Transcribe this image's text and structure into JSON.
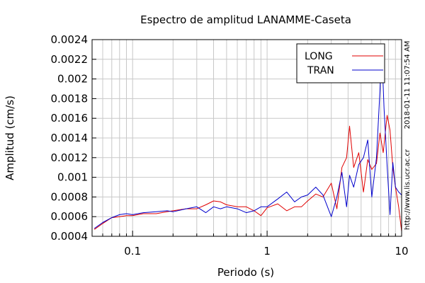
{
  "chart_data": {
    "type": "line",
    "title": "Espectro de amplitud LANAMME-Caseta",
    "xlabel": "Periodo (s)",
    "ylabel": "Amplitud (cm/s)",
    "xscale": "log",
    "xlim": [
      0.05,
      10
    ],
    "ylim": [
      0.0004,
      0.0024
    ],
    "grid": true,
    "legend_position": "top-right",
    "x_tick_labels": [
      "0.1",
      "1",
      "10"
    ],
    "y_tick_labels": [
      "0.0004",
      "0.0006",
      "0.0008",
      "0.001",
      "0.0012",
      "0.0014",
      "0.0016",
      "0.0018",
      "0.002",
      "0.0022",
      "0.0024"
    ],
    "side_annotations": {
      "timestamp": "2018-01-11 11:07:54 AM",
      "url": "http://www.lis.ucr.ac.cr"
    },
    "series": [
      {
        "name": "LONG",
        "color": "#e00000",
        "points": [
          [
            0.052,
            0.00047
          ],
          [
            0.06,
            0.00053
          ],
          [
            0.07,
            0.00059
          ],
          [
            0.08,
            0.0006
          ],
          [
            0.09,
            0.00061
          ],
          [
            0.1,
            0.00061
          ],
          [
            0.12,
            0.00063
          ],
          [
            0.15,
            0.00063
          ],
          [
            0.18,
            0.00065
          ],
          [
            0.2,
            0.00066
          ],
          [
            0.25,
            0.00068
          ],
          [
            0.3,
            0.00068
          ],
          [
            0.35,
            0.00072
          ],
          [
            0.4,
            0.00076
          ],
          [
            0.45,
            0.00075
          ],
          [
            0.5,
            0.00072
          ],
          [
            0.6,
            0.0007
          ],
          [
            0.7,
            0.0007
          ],
          [
            0.8,
            0.00066
          ],
          [
            0.9,
            0.00061
          ],
          [
            1.0,
            0.00069
          ],
          [
            1.2,
            0.00073
          ],
          [
            1.4,
            0.00066
          ],
          [
            1.6,
            0.0007
          ],
          [
            1.8,
            0.0007
          ],
          [
            2.0,
            0.00076
          ],
          [
            2.3,
            0.00083
          ],
          [
            2.6,
            0.0008
          ],
          [
            3.0,
            0.00094
          ],
          [
            3.3,
            0.00068
          ],
          [
            3.6,
            0.0011
          ],
          [
            3.9,
            0.0012
          ],
          [
            4.1,
            0.00152
          ],
          [
            4.4,
            0.0011
          ],
          [
            4.8,
            0.00125
          ],
          [
            5.2,
            0.00085
          ],
          [
            5.6,
            0.00118
          ],
          [
            6.0,
            0.00108
          ],
          [
            6.5,
            0.00114
          ],
          [
            6.9,
            0.00145
          ],
          [
            7.3,
            0.00125
          ],
          [
            7.8,
            0.00163
          ],
          [
            8.2,
            0.00148
          ],
          [
            8.6,
            0.0011
          ],
          [
            9.0,
            0.0009
          ],
          [
            9.5,
            0.0007
          ],
          [
            10.0,
            0.00045
          ]
        ]
      },
      {
        "name": "TRAN",
        "color": "#0000cc",
        "points": [
          [
            0.052,
            0.00048
          ],
          [
            0.06,
            0.00054
          ],
          [
            0.07,
            0.00059
          ],
          [
            0.08,
            0.00062
          ],
          [
            0.09,
            0.00063
          ],
          [
            0.1,
            0.00062
          ],
          [
            0.12,
            0.00064
          ],
          [
            0.15,
            0.00065
          ],
          [
            0.18,
            0.00066
          ],
          [
            0.2,
            0.00065
          ],
          [
            0.25,
            0.00068
          ],
          [
            0.3,
            0.0007
          ],
          [
            0.35,
            0.00064
          ],
          [
            0.4,
            0.0007
          ],
          [
            0.45,
            0.00068
          ],
          [
            0.5,
            0.0007
          ],
          [
            0.6,
            0.00068
          ],
          [
            0.7,
            0.00064
          ],
          [
            0.8,
            0.00066
          ],
          [
            0.9,
            0.0007
          ],
          [
            1.0,
            0.0007
          ],
          [
            1.2,
            0.00078
          ],
          [
            1.4,
            0.00085
          ],
          [
            1.6,
            0.00075
          ],
          [
            1.8,
            0.0008
          ],
          [
            2.0,
            0.00082
          ],
          [
            2.3,
            0.0009
          ],
          [
            2.6,
            0.00082
          ],
          [
            3.0,
            0.0006
          ],
          [
            3.3,
            0.0008
          ],
          [
            3.6,
            0.00105
          ],
          [
            3.9,
            0.0007
          ],
          [
            4.1,
            0.00102
          ],
          [
            4.4,
            0.0009
          ],
          [
            4.8,
            0.00113
          ],
          [
            5.2,
            0.0012
          ],
          [
            5.6,
            0.00138
          ],
          [
            6.0,
            0.0008
          ],
          [
            6.5,
            0.0012
          ],
          [
            6.9,
            0.00188
          ],
          [
            7.1,
            0.00233
          ],
          [
            7.4,
            0.0017
          ],
          [
            7.8,
            0.00112
          ],
          [
            8.2,
            0.00062
          ],
          [
            8.6,
            0.00115
          ],
          [
            9.0,
            0.0009
          ],
          [
            9.5,
            0.00085
          ],
          [
            10.0,
            0.00082
          ]
        ]
      }
    ]
  }
}
